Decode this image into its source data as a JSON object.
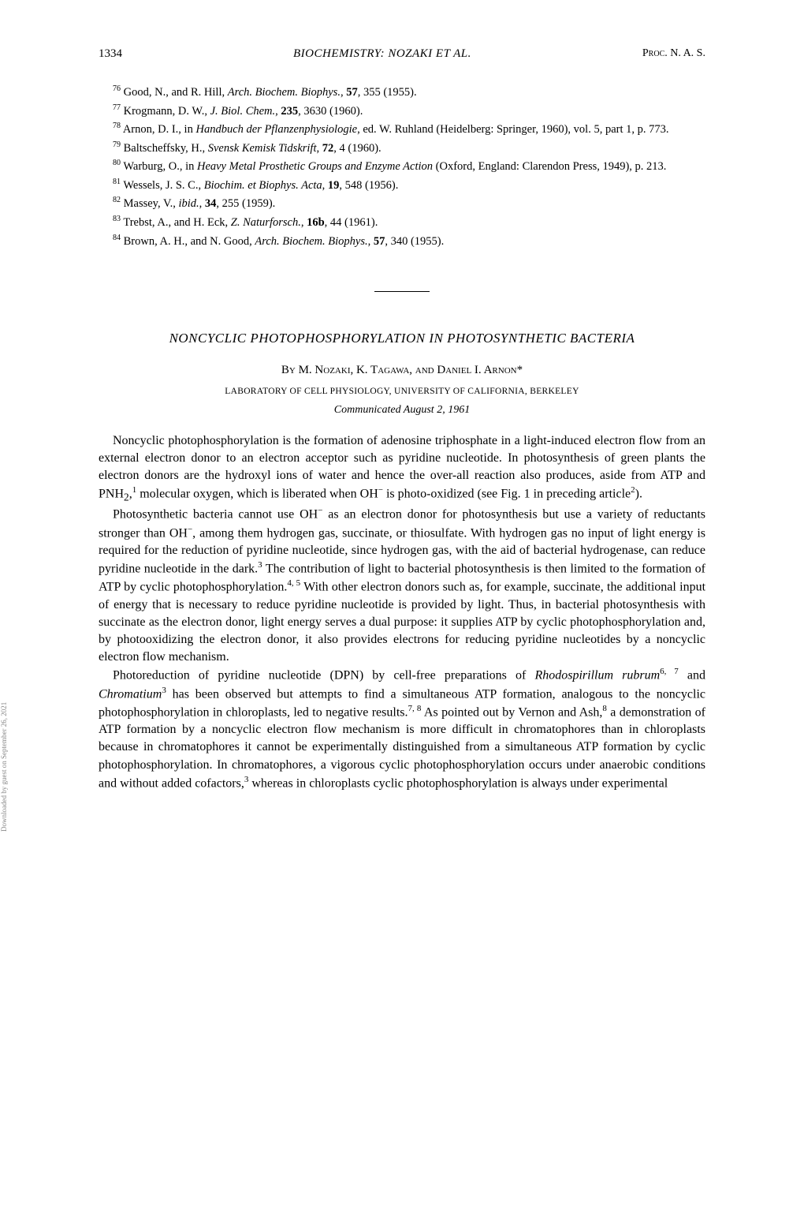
{
  "header": {
    "page_number": "1334",
    "running_head": "BIOCHEMISTRY: NOZAKI ET AL.",
    "proc": "Proc. N. A. S."
  },
  "references": [
    {
      "num": "76",
      "text": "Good, N., and R. Hill, <i>Arch. Biochem. Biophys.</i>, <b>57</b>, 355 (1955)."
    },
    {
      "num": "77",
      "text": "Krogmann, D. W., <i>J. Biol. Chem.</i>, <b>235</b>, 3630 (1960)."
    },
    {
      "num": "78",
      "text": "Arnon, D. I., in <i>Handbuch der Pflanzenphysiologie</i>, ed. W. Ruhland (Heidelberg: Springer, 1960), vol. 5, part 1, p. 773."
    },
    {
      "num": "79",
      "text": "Baltscheffsky, H., <i>Svensk Kemisk Tidskrift</i>, <b>72</b>, 4 (1960)."
    },
    {
      "num": "80",
      "text": "Warburg, O., in <i>Heavy Metal Prosthetic Groups and Enzyme Action</i> (Oxford, England: Clarendon Press, 1949), p. 213."
    },
    {
      "num": "81",
      "text": "Wessels, J. S. C., <i>Biochim. et Biophys. Acta</i>, <b>19</b>, 548 (1956)."
    },
    {
      "num": "82",
      "text": "Massey, V., <i>ibid.</i>, <b>34</b>, 255 (1959)."
    },
    {
      "num": "83",
      "text": "Trebst, A., and H. Eck, <i>Z. Naturforsch.</i>, <b>16b</b>, 44 (1961)."
    },
    {
      "num": "84",
      "text": "Brown, A. H., and N. Good, <i>Arch. Biochem. Biophys.</i>, <b>57</b>, 340 (1955)."
    }
  ],
  "article": {
    "title": "NONCYCLIC PHOTOPHOSPHORYLATION IN PHOTOSYNTHETIC BACTERIA",
    "by": "By",
    "authors": "M. Nozaki, K. Tagawa, and Daniel I. Arnon*",
    "affiliation": "LABORATORY OF CELL PHYSIOLOGY, UNIVERSITY OF CALIFORNIA, BERKELEY",
    "communicated": "Communicated August 2, 1961",
    "paragraphs": [
      "Noncyclic photophosphorylation is the formation of adenosine triphosphate in a light-induced electron flow from an external electron donor to an electron acceptor such as pyridine nucleotide. In photosynthesis of green plants the electron donors are the hydroxyl ions of water and hence the over-all reaction also produces, aside from ATP and PNH<sub>2</sub>,<sup>1</sup> molecular oxygen, which is liberated when OH<sup>−</sup> is photo-oxidized (see Fig. 1 in preceding article<sup>2</sup>).",
      "Photosynthetic bacteria cannot use OH<sup>−</sup> as an electron donor for photosynthesis but use a variety of reductants stronger than OH<sup>−</sup>, among them hydrogen gas, succinate, or thiosulfate. With hydrogen gas no input of light energy is required for the reduction of pyridine nucleotide, since hydrogen gas, with the aid of bacterial hydrogenase, can reduce pyridine nucleotide in the dark.<sup>3</sup> The contribution of light to bacterial photosynthesis is then limited to the formation of ATP by cyclic photophosphorylation.<sup>4, 5</sup> With other electron donors such as, for example, succinate, the additional input of energy that is necessary to reduce pyridine nucleotide is provided by light. Thus, in bacterial photosynthesis with succinate as the electron donor, light energy serves a dual purpose: it supplies ATP by cyclic photophosphorylation and, by photooxidizing the electron donor, it also provides electrons for reducing pyridine nucleotides by a noncyclic electron flow mechanism.",
      "Photoreduction of pyridine nucleotide (DPN) by cell-free preparations of <i>Rhodospirillum rubrum</i><sup>6, 7</sup> and <i>Chromatium</i><sup>3</sup> has been observed but attempts to find a simultaneous ATP formation, analogous to the noncyclic photophosphorylation in chloroplasts, led to negative results.<sup>7, 8</sup> As pointed out by Vernon and Ash,<sup>8</sup> a demonstration of ATP formation by a noncyclic electron flow mechanism is more difficult in chromatophores than in chloroplasts because in chromatophores it cannot be experimentally distinguished from a simultaneous ATP formation by cyclic photophosphorylation. In chromatophores, a vigorous cyclic photophosphorylation occurs under anaerobic conditions and without added cofactors,<sup>3</sup> whereas in chloroplasts cyclic photophosphorylation is always under experimental"
    ]
  },
  "sidebar": "Downloaded by guest on September 26, 2021"
}
